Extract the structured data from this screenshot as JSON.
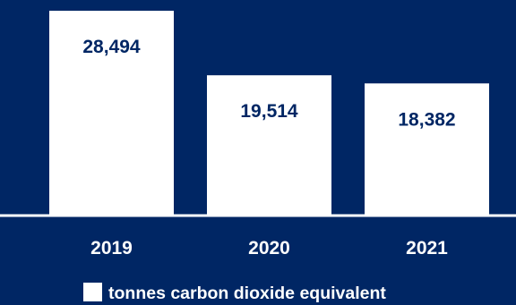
{
  "colors": {
    "background": "#002664",
    "bar": "#ffffff",
    "value_text": "#002664",
    "axis": "#ffffff",
    "label_text": "#ffffff"
  },
  "chart_data": {
    "type": "bar",
    "categories": [
      "2019",
      "2020",
      "2021"
    ],
    "series": [
      {
        "name": "tonnes carbon dioxide equivalent",
        "values": [
          28494,
          19514,
          18382
        ]
      }
    ],
    "value_labels": [
      "28,494",
      "19,514",
      "18,382"
    ],
    "ylim": [
      0,
      28494
    ],
    "grid": false,
    "legend": {
      "position": "bottom",
      "entries": [
        "tonnes carbon dioxide equivalent"
      ]
    },
    "title": "",
    "xlabel": "",
    "ylabel": ""
  }
}
